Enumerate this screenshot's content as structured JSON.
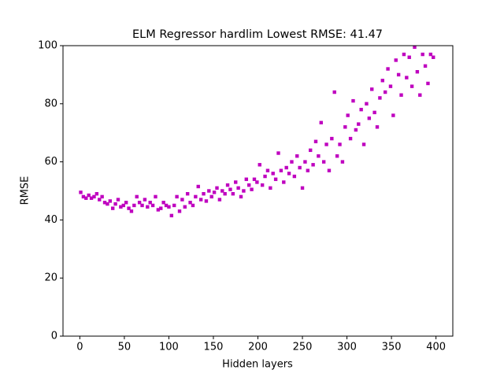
{
  "chart_data": {
    "type": "scatter",
    "title": "ELM Regressor hardlim Lowest RMSE: 41.47",
    "x_label": "Hidden layers",
    "y_label": "RMSE",
    "color": "#bf00bf",
    "xlim": [
      -18.9,
      418.9
    ],
    "ylim": [
      0,
      100
    ],
    "xticks": [
      0,
      50,
      100,
      150,
      200,
      250,
      300,
      350,
      400
    ],
    "yticks": [
      0,
      20,
      40,
      60,
      80,
      100
    ],
    "x": [
      1,
      4,
      7,
      10,
      13,
      16,
      19,
      22,
      25,
      28,
      31,
      34,
      37,
      40,
      43,
      46,
      49,
      52,
      55,
      58,
      61,
      64,
      67,
      70,
      73,
      76,
      79,
      82,
      85,
      88,
      91,
      94,
      97,
      100,
      103,
      106,
      109,
      112,
      115,
      118,
      121,
      124,
      127,
      130,
      133,
      136,
      139,
      142,
      145,
      148,
      151,
      154,
      157,
      160,
      163,
      166,
      169,
      172,
      175,
      178,
      181,
      184,
      187,
      190,
      193,
      196,
      199,
      202,
      205,
      208,
      211,
      214,
      217,
      220,
      223,
      226,
      229,
      232,
      235,
      238,
      241,
      244,
      247,
      250,
      253,
      256,
      259,
      262,
      265,
      268,
      271,
      274,
      277,
      280,
      283,
      286,
      289,
      292,
      295,
      298,
      301,
      304,
      307,
      310,
      313,
      316,
      319,
      322,
      325,
      328,
      331,
      334,
      337,
      340,
      343,
      346,
      349,
      352,
      355,
      358,
      361,
      364,
      367,
      370,
      373,
      376,
      379,
      382,
      385,
      388,
      391,
      394,
      397
    ],
    "values": [
      49.5,
      48,
      47.5,
      48.5,
      47.5,
      48,
      49,
      47,
      48,
      46,
      45.5,
      46.5,
      44,
      45.5,
      47,
      44.5,
      45,
      46,
      44,
      43,
      45,
      48,
      46,
      45,
      47,
      44.5,
      46,
      45,
      48,
      43.5,
      44,
      46,
      45,
      44.5,
      41.5,
      45,
      48,
      43,
      47,
      44.5,
      49,
      46,
      45,
      48,
      51.5,
      47,
      49,
      46.5,
      50,
      48,
      49.5,
      51,
      47,
      50,
      49,
      52,
      50.5,
      49,
      53,
      51,
      48,
      50,
      54,
      52,
      50.5,
      54,
      53,
      59,
      52,
      55,
      57,
      51,
      56,
      54,
      63,
      57,
      53,
      58,
      56,
      60,
      55,
      62,
      58,
      51,
      60,
      57,
      64,
      59,
      67,
      62,
      73.5,
      60,
      66,
      57,
      68,
      84,
      62,
      66,
      60,
      72,
      76,
      68,
      81,
      71,
      73,
      78,
      66,
      80,
      75,
      85,
      77,
      72,
      82,
      88,
      84,
      92,
      86,
      76,
      95,
      90,
      83,
      97,
      89,
      96,
      86,
      99.5,
      91,
      83,
      97,
      93,
      87,
      97,
      96
    ]
  }
}
